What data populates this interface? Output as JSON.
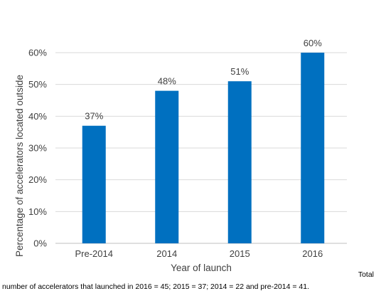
{
  "chart_data": {
    "type": "bar",
    "title": "",
    "xlabel": "Year of launch",
    "ylabel": "Percentage of accelerators located outside",
    "categories": [
      "Pre-2014",
      "2014",
      "2015",
      "2016"
    ],
    "values": [
      37,
      48,
      51,
      60
    ],
    "data_labels": [
      "37%",
      "48%",
      "51%",
      "60%"
    ],
    "yticks": [
      "0%",
      "10%",
      "20%",
      "30%",
      "40%",
      "50%",
      "60%"
    ],
    "ylim": [
      0,
      60
    ],
    "grid": true,
    "legend": "none",
    "bar_color": "#0070C0",
    "grid_color": "#d9d9d9"
  },
  "footnote": {
    "total_word": "Total",
    "text": "number of accelerators that launched in 2016 = 45; 2015 = 37; 2014 = 22 and pre-2014 = 41."
  }
}
